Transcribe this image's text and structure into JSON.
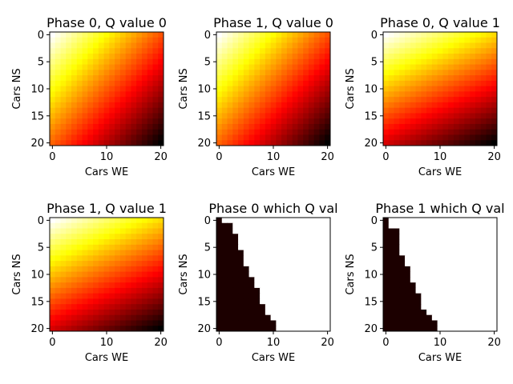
{
  "figure": {
    "colormap": "hot",
    "axis_labels": {
      "x": "Cars WE",
      "y": "Cars NS"
    }
  },
  "chart_data": [
    {
      "type": "heatmap",
      "title": "Phase 0, Q value 0",
      "xlabel": "Cars WE",
      "ylabel": "Cars NS",
      "xticks": [
        0,
        10,
        20
      ],
      "yticks": [
        0,
        5,
        10,
        15,
        20
      ],
      "xlim": [
        0,
        20
      ],
      "ylim": [
        0,
        20
      ],
      "grid_size": 21,
      "colormap": "hot",
      "pattern": "gradient",
      "weights": {
        "ns": 1.0,
        "we": 1.05
      }
    },
    {
      "type": "heatmap",
      "title": "Phase 1, Q value 0",
      "xlabel": "Cars WE",
      "ylabel": "Cars NS",
      "xticks": [
        0,
        10,
        20
      ],
      "yticks": [
        0,
        5,
        10,
        15,
        20
      ],
      "xlim": [
        0,
        20
      ],
      "ylim": [
        0,
        20
      ],
      "grid_size": 21,
      "colormap": "hot",
      "pattern": "gradient",
      "weights": {
        "ns": 1.0,
        "we": 1.05
      }
    },
    {
      "type": "heatmap",
      "title": "Phase 0, Q value 1",
      "xlabel": "Cars WE",
      "ylabel": "Cars NS",
      "xticks": [
        0,
        10,
        20
      ],
      "yticks": [
        0,
        5,
        10,
        15,
        20
      ],
      "xlim": [
        0,
        20
      ],
      "ylim": [
        0,
        20
      ],
      "grid_size": 21,
      "colormap": "hot",
      "pattern": "gradient",
      "weights": {
        "ns": 1.35,
        "we": 0.6
      }
    },
    {
      "type": "heatmap",
      "title": "Phase 1, Q value 1",
      "xlabel": "Cars WE",
      "ylabel": "Cars NS",
      "xticks": [
        0,
        10,
        20
      ],
      "yticks": [
        0,
        5,
        10,
        15,
        20
      ],
      "xlim": [
        0,
        20
      ],
      "ylim": [
        0,
        20
      ],
      "grid_size": 21,
      "colormap": "hot",
      "pattern": "gradient",
      "weights": {
        "ns": 1.35,
        "we": 0.6
      }
    },
    {
      "type": "heatmap",
      "title": "Phase 0 which Q val",
      "xlabel": "Cars WE",
      "ylabel": "Cars NS",
      "xticks": [
        0,
        10,
        20
      ],
      "yticks": [
        0,
        5,
        10,
        15,
        20
      ],
      "xlim": [
        0,
        20
      ],
      "ylim": [
        0,
        20
      ],
      "grid_size": 21,
      "colormap": "hot",
      "pattern": "binary",
      "boundary": [
        1,
        3,
        3,
        4,
        4,
        4,
        5,
        5,
        5,
        6,
        6,
        7,
        7,
        8,
        8,
        8,
        9,
        9,
        10,
        11,
        11
      ]
    },
    {
      "type": "heatmap",
      "title": "Phase 1 which Q val",
      "xlabel": "Cars WE",
      "ylabel": "Cars NS",
      "xticks": [
        0,
        10,
        20
      ],
      "yticks": [
        0,
        5,
        10,
        15,
        20
      ],
      "xlim": [
        0,
        20
      ],
      "ylim": [
        0,
        20
      ],
      "grid_size": 21,
      "colormap": "hot",
      "pattern": "binary",
      "boundary": [
        1,
        1,
        3,
        3,
        3,
        3,
        3,
        4,
        4,
        5,
        5,
        5,
        6,
        6,
        7,
        7,
        7,
        8,
        9,
        10,
        10
      ]
    }
  ]
}
